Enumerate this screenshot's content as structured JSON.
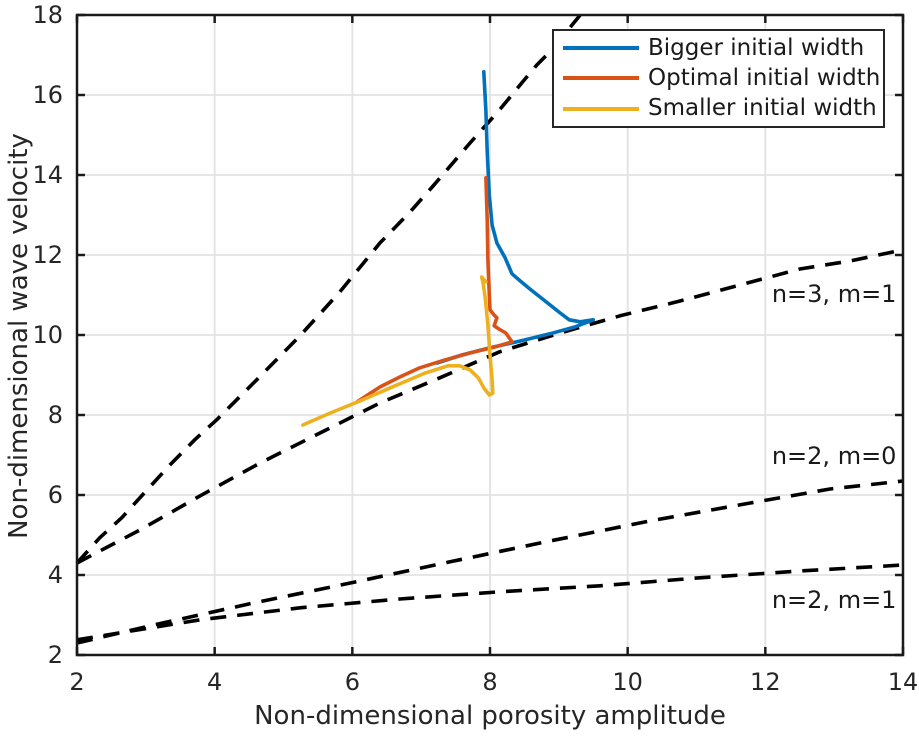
{
  "figure": {
    "background": "#ffffff",
    "axis_color": "#1a1a1a",
    "grid_color": "#e2e2e2",
    "text_color": "#262626"
  },
  "chart_data": {
    "type": "line",
    "title": "",
    "xlabel": "Non-dimensional porosity amplitude",
    "ylabel": "Non-dimensional wave velocity",
    "xlim": [
      2,
      14
    ],
    "ylim": [
      2,
      18
    ],
    "xticks": [
      2,
      4,
      6,
      8,
      10,
      12,
      14
    ],
    "yticks": [
      2,
      4,
      6,
      8,
      10,
      12,
      14,
      16,
      18
    ],
    "grid": true,
    "legend_position": "top-right",
    "series": [
      {
        "name": "",
        "slug": "dashed-unlabeled-upper",
        "color": "#000000",
        "line_style": "dashed",
        "in_legend": false,
        "points": [
          [
            2,
            4.3
          ],
          [
            2.33,
            4.93
          ],
          [
            2.65,
            5.43
          ],
          [
            3.02,
            6.13
          ],
          [
            3.35,
            6.75
          ],
          [
            3.71,
            7.38
          ],
          [
            4.03,
            7.88
          ],
          [
            4.61,
            8.88
          ],
          [
            5.24,
            9.98
          ],
          [
            5.82,
            11.08
          ],
          [
            6.4,
            12.3
          ],
          [
            6.84,
            13.08
          ],
          [
            7.16,
            13.7
          ],
          [
            7.71,
            14.8
          ],
          [
            8.14,
            15.63
          ],
          [
            8.46,
            16.3
          ],
          [
            8.68,
            16.75
          ],
          [
            8.9,
            17.13
          ],
          [
            9.31,
            18.0
          ]
        ]
      },
      {
        "name": "n=3, m=1",
        "slug": "dashed-n3-m1",
        "color": "#000000",
        "line_style": "dashed",
        "in_legend": false,
        "points": [
          [
            2,
            4.3
          ],
          [
            2.92,
            5.13
          ],
          [
            3.79,
            5.98
          ],
          [
            4.66,
            6.8
          ],
          [
            5.53,
            7.55
          ],
          [
            6.4,
            8.3
          ],
          [
            7.27,
            8.93
          ],
          [
            8.14,
            9.58
          ],
          [
            9.02,
            10.05
          ],
          [
            9.89,
            10.48
          ],
          [
            10.76,
            10.85
          ],
          [
            11.63,
            11.25
          ],
          [
            12.5,
            11.65
          ],
          [
            13.23,
            11.85
          ],
          [
            14,
            12.13
          ]
        ]
      },
      {
        "name": "n=2, m=0",
        "slug": "dashed-n2-m0",
        "color": "#000000",
        "line_style": "dashed",
        "in_legend": false,
        "points": [
          [
            2,
            2.3
          ],
          [
            3.06,
            2.73
          ],
          [
            4.51,
            3.28
          ],
          [
            5.97,
            3.8
          ],
          [
            7.42,
            4.33
          ],
          [
            8.87,
            4.85
          ],
          [
            10.32,
            5.35
          ],
          [
            11.78,
            5.8
          ],
          [
            12.94,
            6.15
          ],
          [
            14,
            6.35
          ]
        ]
      },
      {
        "name": "n=2, m=1",
        "slug": "dashed-n2-m1",
        "color": "#000000",
        "line_style": "dashed",
        "in_legend": false,
        "points": [
          [
            2,
            2.38
          ],
          [
            3.79,
            2.88
          ],
          [
            5.24,
            3.18
          ],
          [
            6.69,
            3.4
          ],
          [
            8.14,
            3.58
          ],
          [
            9.6,
            3.73
          ],
          [
            11.05,
            3.93
          ],
          [
            12.5,
            4.1
          ],
          [
            14,
            4.25
          ]
        ]
      },
      {
        "name": "Bigger initial width",
        "slug": "bigger-initial-width",
        "color": "#0072BD",
        "line_style": "solid",
        "in_legend": true,
        "points": [
          [
            7.91,
            16.58
          ],
          [
            7.94,
            15.6
          ],
          [
            7.96,
            14.6
          ],
          [
            7.99,
            13.5
          ],
          [
            8.03,
            12.75
          ],
          [
            8.1,
            12.3
          ],
          [
            8.22,
            11.93
          ],
          [
            8.32,
            11.53
          ],
          [
            8.44,
            11.35
          ],
          [
            8.58,
            11.15
          ],
          [
            8.8,
            10.85
          ],
          [
            9.02,
            10.55
          ],
          [
            9.15,
            10.38
          ],
          [
            9.31,
            10.33
          ],
          [
            9.5,
            10.38
          ],
          [
            9.23,
            10.2
          ],
          [
            8.87,
            10.03
          ],
          [
            8.44,
            9.85
          ],
          [
            8.0,
            9.68
          ],
          [
            7.59,
            9.5
          ],
          [
            7.23,
            9.3
          ]
        ]
      },
      {
        "name": "Optimal initial width",
        "slug": "optimal-initial-width",
        "color": "#D95319",
        "line_style": "solid",
        "in_legend": true,
        "points": [
          [
            7.94,
            13.93
          ],
          [
            7.96,
            12.88
          ],
          [
            7.97,
            11.88
          ],
          [
            7.99,
            11.0
          ],
          [
            8.0,
            10.63
          ],
          [
            8.06,
            10.5
          ],
          [
            8.1,
            10.43
          ],
          [
            8.06,
            10.23
          ],
          [
            8.13,
            10.15
          ],
          [
            8.23,
            10.05
          ],
          [
            8.32,
            9.83
          ],
          [
            8.07,
            9.7
          ],
          [
            7.71,
            9.55
          ],
          [
            7.35,
            9.38
          ],
          [
            6.98,
            9.18
          ],
          [
            6.69,
            8.95
          ],
          [
            6.4,
            8.7
          ],
          [
            6.07,
            8.33
          ]
        ]
      },
      {
        "name": "Smaller initial width",
        "slug": "smaller-initial-width",
        "color": "#EDB120",
        "line_style": "solid",
        "in_legend": true,
        "points": [
          [
            5.28,
            7.75
          ],
          [
            5.68,
            8.05
          ],
          [
            6.11,
            8.35
          ],
          [
            6.62,
            8.73
          ],
          [
            7.06,
            9.05
          ],
          [
            7.39,
            9.23
          ],
          [
            7.56,
            9.23
          ],
          [
            7.71,
            9.13
          ],
          [
            7.83,
            8.93
          ],
          [
            7.91,
            8.68
          ],
          [
            7.99,
            8.5
          ],
          [
            8.04,
            8.55
          ],
          [
            8.03,
            8.88
          ],
          [
            8.0,
            9.5
          ],
          [
            7.97,
            10.25
          ],
          [
            7.93,
            10.93
          ],
          [
            7.9,
            11.3
          ],
          [
            7.88,
            11.45
          ],
          [
            7.94,
            11.33
          ]
        ]
      }
    ],
    "annotations": [
      {
        "text": "n=3, m=1",
        "x": 13.0,
        "y": 11.0
      },
      {
        "text": "n=2, m=0",
        "x": 13.0,
        "y": 6.95
      },
      {
        "text": "n=2, m=1",
        "x": 13.0,
        "y": 3.35
      }
    ]
  }
}
